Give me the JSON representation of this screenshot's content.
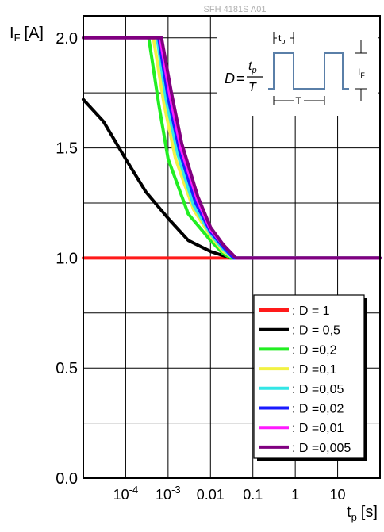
{
  "figure_code": "SFH 4181S A01",
  "chart_data": {
    "type": "line",
    "title": "",
    "ylabel": {
      "main": "I",
      "sub": "F",
      "unit": "[A]"
    },
    "xlabel": {
      "main": "t",
      "sub": "p",
      "unit": "[s]"
    },
    "x_scale": "log",
    "xlim": [
      1e-05,
      100
    ],
    "ylim": [
      0.0,
      2.1
    ],
    "grid": true,
    "y_ticks": [
      {
        "value": 0.0,
        "label": "0.0"
      },
      {
        "value": 0.5,
        "label": "0.5"
      },
      {
        "value": 1.0,
        "label": "1.0"
      },
      {
        "value": 1.5,
        "label": "1.5"
      },
      {
        "value": 2.0,
        "label": "2.0"
      }
    ],
    "x_ticks": [
      {
        "value": 0.0001,
        "base": "10",
        "exp": "-4"
      },
      {
        "value": 0.001,
        "base": "10",
        "exp": "-3"
      },
      {
        "value": 0.01,
        "label": "0.01"
      },
      {
        "value": 0.1,
        "label": "0.1"
      },
      {
        "value": 1,
        "label": "1"
      },
      {
        "value": 10,
        "label": "10"
      }
    ],
    "legend_position": "bottom-right",
    "series": [
      {
        "name": ": D = 1",
        "color": "#ff1a1a",
        "points": [
          [
            1e-05,
            1.0
          ],
          [
            100,
            1.0
          ]
        ]
      },
      {
        "name": ": D = 0,5",
        "color": "#000000",
        "points": [
          [
            1e-05,
            1.72
          ],
          [
            3e-05,
            1.62
          ],
          [
            0.0001,
            1.45
          ],
          [
            0.0003,
            1.3
          ],
          [
            0.001,
            1.18
          ],
          [
            0.003,
            1.08
          ],
          [
            0.01,
            1.03
          ],
          [
            0.03,
            1.0
          ],
          [
            100,
            1.0
          ]
        ]
      },
      {
        "name": ": D =0,2",
        "color": "#22ee22",
        "points": [
          [
            0.00035,
            2.0
          ],
          [
            0.0006,
            1.7
          ],
          [
            0.001,
            1.45
          ],
          [
            0.003,
            1.2
          ],
          [
            0.01,
            1.08
          ],
          [
            0.02,
            1.02
          ],
          [
            0.03,
            1.0
          ],
          [
            100,
            1.0
          ]
        ]
      },
      {
        "name": ": D =0,1",
        "color": "#f2f244",
        "points": [
          [
            0.00045,
            2.0
          ],
          [
            0.0008,
            1.7
          ],
          [
            0.0015,
            1.45
          ],
          [
            0.004,
            1.22
          ],
          [
            0.01,
            1.1
          ],
          [
            0.02,
            1.03
          ],
          [
            0.035,
            1.0
          ],
          [
            100,
            1.0
          ]
        ]
      },
      {
        "name": ": D =0,05",
        "color": "#33e6e6",
        "points": [
          [
            0.00055,
            2.0
          ],
          [
            0.0009,
            1.72
          ],
          [
            0.0017,
            1.47
          ],
          [
            0.004,
            1.24
          ],
          [
            0.01,
            1.11
          ],
          [
            0.02,
            1.04
          ],
          [
            0.035,
            1.0
          ],
          [
            100,
            1.0
          ]
        ]
      },
      {
        "name": ": D =0,02",
        "color": "#1a1aff",
        "points": [
          [
            0.0006,
            2.0
          ],
          [
            0.001,
            1.73
          ],
          [
            0.0019,
            1.48
          ],
          [
            0.0045,
            1.25
          ],
          [
            0.01,
            1.12
          ],
          [
            0.02,
            1.05
          ],
          [
            0.035,
            1.0
          ],
          [
            100,
            1.0
          ]
        ]
      },
      {
        "name": ": D =0,01",
        "color": "#ff1aff",
        "points": [
          [
            0.00065,
            2.0
          ],
          [
            0.0011,
            1.74
          ],
          [
            0.002,
            1.5
          ],
          [
            0.005,
            1.26
          ],
          [
            0.01,
            1.13
          ],
          [
            0.02,
            1.06
          ],
          [
            0.04,
            1.0
          ],
          [
            100,
            1.0
          ]
        ]
      },
      {
        "name": ": D =0,005",
        "color": "#800080",
        "points": [
          [
            1e-05,
            2.0
          ],
          [
            0.0007,
            2.0
          ],
          [
            0.0012,
            1.75
          ],
          [
            0.0021,
            1.52
          ],
          [
            0.005,
            1.28
          ],
          [
            0.01,
            1.14
          ],
          [
            0.02,
            1.06
          ],
          [
            0.04,
            1.0
          ],
          [
            100,
            1.0
          ]
        ]
      }
    ]
  },
  "inset": {
    "formula_lhs": "D",
    "formula_eq": "=",
    "numerator_main": "t",
    "numerator_sub": "p",
    "denominator": "T",
    "pulse_width_main": "t",
    "pulse_width_sub": "p",
    "period_label": "T",
    "amplitude_main": "I",
    "amplitude_sub": "F",
    "line_color": "#5a7fa8"
  }
}
